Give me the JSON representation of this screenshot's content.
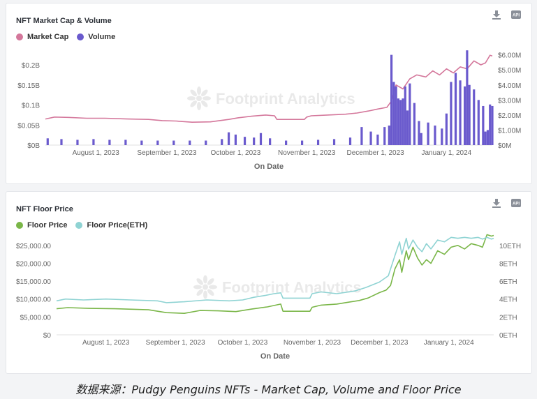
{
  "caption": "数据来源：Pudgy Penguins NFTs - Market Cap, Volume and Floor Price",
  "watermark": "Footprint Analytics",
  "icons": {
    "download": "download-icon",
    "api": "api-icon"
  },
  "chart_data": [
    {
      "type": "bar+line",
      "title": "NFT Market Cap & Volume",
      "xlabel": "On Date",
      "x_ticks": [
        "August 1, 2023",
        "September 1, 2023",
        "October 1, 2023",
        "November 1, 2023",
        "December 1, 2023",
        "January 1, 2024"
      ],
      "x_range": [
        "2023-07-10",
        "2024-01-21"
      ],
      "left_axis": {
        "ticks": [
          "$0B",
          "$0.05B",
          "$0.1B",
          "$0.15B",
          "$0.2B"
        ],
        "range": [
          0,
          0.24
        ]
      },
      "right_axis": {
        "ticks": [
          "$0M",
          "$1.00M",
          "$2.00M",
          "$3.00M",
          "$4.00M",
          "$5.00M",
          "$6.00M"
        ],
        "range": [
          0,
          6.4
        ]
      },
      "series": [
        {
          "name": "Market Cap",
          "color": "#d4779b",
          "kind": "line",
          "axis": "left",
          "points": [
            [
              "2023-07-10",
              0.065
            ],
            [
              "2023-07-14",
              0.07
            ],
            [
              "2023-07-20",
              0.069
            ],
            [
              "2023-07-28",
              0.067
            ],
            [
              "2023-08-05",
              0.067
            ],
            [
              "2023-08-15",
              0.065
            ],
            [
              "2023-08-24",
              0.064
            ],
            [
              "2023-08-30",
              0.061
            ],
            [
              "2023-09-05",
              0.06
            ],
            [
              "2023-09-12",
              0.057
            ],
            [
              "2023-09-20",
              0.058
            ],
            [
              "2023-09-28",
              0.064
            ],
            [
              "2023-10-02",
              0.068
            ],
            [
              "2023-10-08",
              0.072
            ],
            [
              "2023-10-14",
              0.075
            ],
            [
              "2023-10-18",
              0.073
            ],
            [
              "2023-10-19",
              0.064
            ],
            [
              "2023-10-25",
              0.064
            ],
            [
              "2023-10-31",
              0.064
            ],
            [
              "2023-11-01",
              0.07
            ],
            [
              "2023-11-03",
              0.073
            ],
            [
              "2023-11-10",
              0.075
            ],
            [
              "2023-11-18",
              0.077
            ],
            [
              "2023-11-23",
              0.08
            ],
            [
              "2023-11-28",
              0.085
            ],
            [
              "2023-12-02",
              0.09
            ],
            [
              "2023-12-06",
              0.094
            ],
            [
              "2023-12-08",
              0.11
            ],
            [
              "2023-12-10",
              0.15
            ],
            [
              "2023-12-13",
              0.14
            ],
            [
              "2023-12-16",
              0.165
            ],
            [
              "2023-12-19",
              0.175
            ],
            [
              "2023-12-23",
              0.17
            ],
            [
              "2023-12-26",
              0.185
            ],
            [
              "2023-12-29",
              0.175
            ],
            [
              "2024-01-01",
              0.19
            ],
            [
              "2024-01-04",
              0.18
            ],
            [
              "2024-01-07",
              0.195
            ],
            [
              "2024-01-10",
              0.19
            ],
            [
              "2024-01-13",
              0.21
            ],
            [
              "2024-01-16",
              0.2
            ],
            [
              "2024-01-18",
              0.205
            ],
            [
              "2024-01-20",
              0.224
            ],
            [
              "2024-01-21",
              0.222
            ]
          ]
        },
        {
          "name": "Volume",
          "color": "#6a5acd",
          "kind": "bar",
          "axis": "right",
          "points": [
            [
              "2023-07-11",
              0.45
            ],
            [
              "2023-07-17",
              0.4
            ],
            [
              "2023-07-24",
              0.35
            ],
            [
              "2023-07-31",
              0.4
            ],
            [
              "2023-08-07",
              0.35
            ],
            [
              "2023-08-14",
              0.35
            ],
            [
              "2023-08-21",
              0.3
            ],
            [
              "2023-08-28",
              0.3
            ],
            [
              "2023-09-04",
              0.3
            ],
            [
              "2023-09-11",
              0.3
            ],
            [
              "2023-09-18",
              0.3
            ],
            [
              "2023-09-25",
              0.4
            ],
            [
              "2023-09-28",
              0.85
            ],
            [
              "2023-10-01",
              0.7
            ],
            [
              "2023-10-05",
              0.55
            ],
            [
              "2023-10-09",
              0.5
            ],
            [
              "2023-10-12",
              0.8
            ],
            [
              "2023-10-16",
              0.45
            ],
            [
              "2023-10-23",
              0.3
            ],
            [
              "2023-10-30",
              0.3
            ],
            [
              "2023-11-06",
              0.35
            ],
            [
              "2023-11-13",
              0.4
            ],
            [
              "2023-11-20",
              0.5
            ],
            [
              "2023-11-25",
              1.2
            ],
            [
              "2023-11-29",
              0.9
            ],
            [
              "2023-12-02",
              0.7
            ],
            [
              "2023-12-05",
              1.2
            ],
            [
              "2023-12-07",
              1.3
            ],
            [
              "2023-12-08",
              6.0
            ],
            [
              "2023-12-09",
              4.2
            ],
            [
              "2023-12-10",
              3.9
            ],
            [
              "2023-12-11",
              3.1
            ],
            [
              "2023-12-12",
              3.0
            ],
            [
              "2023-12-13",
              3.1
            ],
            [
              "2023-12-14",
              3.9
            ],
            [
              "2023-12-15",
              2.3
            ],
            [
              "2023-12-16",
              4.1
            ],
            [
              "2023-12-18",
              2.8
            ],
            [
              "2023-12-20",
              1.6
            ],
            [
              "2023-12-21",
              0.8
            ],
            [
              "2023-12-24",
              1.5
            ],
            [
              "2023-12-27",
              1.3
            ],
            [
              "2023-12-30",
              1.1
            ],
            [
              "2024-01-01",
              2.1
            ],
            [
              "2024-01-03",
              4.2
            ],
            [
              "2024-01-05",
              4.8
            ],
            [
              "2024-01-07",
              4.3
            ],
            [
              "2024-01-09",
              3.9
            ],
            [
              "2024-01-10",
              6.3
            ],
            [
              "2024-01-11",
              4.0
            ],
            [
              "2024-01-13",
              3.7
            ],
            [
              "2024-01-15",
              3.0
            ],
            [
              "2024-01-17",
              2.6
            ],
            [
              "2024-01-18",
              0.9
            ],
            [
              "2024-01-19",
              1.0
            ],
            [
              "2024-01-20",
              2.7
            ],
            [
              "2024-01-21",
              2.6
            ]
          ]
        }
      ]
    },
    {
      "type": "line",
      "title": "NFT Floor Price",
      "xlabel": "On Date",
      "x_ticks": [
        "August 1, 2023",
        "September 1, 2023",
        "October 1, 2023",
        "November 1, 2023",
        "December 1, 2023",
        "January 1, 2024"
      ],
      "x_range": [
        "2023-07-10",
        "2024-01-21"
      ],
      "left_axis": {
        "ticks": [
          "$0",
          "$5,000.00",
          "$10,000.00",
          "$15,000.00",
          "$20,000.00",
          "$25,000.00"
        ],
        "range": [
          0,
          27500
        ]
      },
      "right_axis": {
        "ticks": [
          "0ETH",
          "2ETH",
          "4ETH",
          "6ETH",
          "8ETH",
          "10ETH"
        ],
        "range": [
          0,
          11
        ]
      },
      "series": [
        {
          "name": "Floor Price",
          "color": "#7ab648",
          "kind": "line",
          "axis": "left",
          "points": [
            [
              "2023-07-10",
              7300
            ],
            [
              "2023-07-15",
              7600
            ],
            [
              "2023-07-25",
              7400
            ],
            [
              "2023-08-05",
              7300
            ],
            [
              "2023-08-20",
              7000
            ],
            [
              "2023-08-28",
              6200
            ],
            [
              "2023-09-05",
              6000
            ],
            [
              "2023-09-12",
              6800
            ],
            [
              "2023-09-20",
              6700
            ],
            [
              "2023-09-28",
              6500
            ],
            [
              "2023-10-05",
              7200
            ],
            [
              "2023-10-12",
              7800
            ],
            [
              "2023-10-18",
              8600
            ],
            [
              "2023-10-19",
              6600
            ],
            [
              "2023-10-25",
              6600
            ],
            [
              "2023-10-31",
              6600
            ],
            [
              "2023-11-01",
              7700
            ],
            [
              "2023-11-05",
              8300
            ],
            [
              "2023-11-12",
              8600
            ],
            [
              "2023-11-18",
              9200
            ],
            [
              "2023-11-22",
              9600
            ],
            [
              "2023-11-26",
              10300
            ],
            [
              "2023-12-01",
              11800
            ],
            [
              "2023-12-04",
              12500
            ],
            [
              "2023-12-06",
              13800
            ],
            [
              "2023-12-08",
              18500
            ],
            [
              "2023-12-10",
              21000
            ],
            [
              "2023-12-11",
              17500
            ],
            [
              "2023-12-13",
              23500
            ],
            [
              "2023-12-14",
              21000
            ],
            [
              "2023-12-16",
              24500
            ],
            [
              "2023-12-18",
              21500
            ],
            [
              "2023-12-20",
              19500
            ],
            [
              "2023-12-22",
              21000
            ],
            [
              "2023-12-24",
              20000
            ],
            [
              "2023-12-27",
              23500
            ],
            [
              "2023-12-30",
              22500
            ],
            [
              "2024-01-02",
              24500
            ],
            [
              "2024-01-05",
              25000
            ],
            [
              "2024-01-08",
              24000
            ],
            [
              "2024-01-11",
              25500
            ],
            [
              "2024-01-14",
              25000
            ],
            [
              "2024-01-16",
              24500
            ],
            [
              "2024-01-18",
              28000
            ],
            [
              "2024-01-20",
              27600
            ],
            [
              "2024-01-21",
              27800
            ]
          ]
        },
        {
          "name": "Floor Price(ETH)",
          "color": "#8fd3d3",
          "kind": "line",
          "axis": "right",
          "points": [
            [
              "2023-07-10",
              3.8
            ],
            [
              "2023-07-14",
              4.0
            ],
            [
              "2023-07-22",
              3.9
            ],
            [
              "2023-08-01",
              4.0
            ],
            [
              "2023-08-12",
              3.9
            ],
            [
              "2023-08-24",
              3.8
            ],
            [
              "2023-08-28",
              3.6
            ],
            [
              "2023-09-05",
              3.7
            ],
            [
              "2023-09-15",
              3.9
            ],
            [
              "2023-09-25",
              3.8
            ],
            [
              "2023-10-01",
              3.9
            ],
            [
              "2023-10-06",
              4.2
            ],
            [
              "2023-10-11",
              4.4
            ],
            [
              "2023-10-15",
              4.6
            ],
            [
              "2023-10-18",
              4.7
            ],
            [
              "2023-10-19",
              4.1
            ],
            [
              "2023-10-25",
              4.1
            ],
            [
              "2023-10-31",
              4.1
            ],
            [
              "2023-11-01",
              4.6
            ],
            [
              "2023-11-05",
              4.8
            ],
            [
              "2023-11-12",
              4.6
            ],
            [
              "2023-11-20",
              4.9
            ],
            [
              "2023-11-25",
              5.3
            ],
            [
              "2023-12-01",
              5.9
            ],
            [
              "2023-12-05",
              6.6
            ],
            [
              "2023-12-08",
              8.9
            ],
            [
              "2023-12-10",
              10.4
            ],
            [
              "2023-12-11",
              9.0
            ],
            [
              "2023-12-13",
              10.8
            ],
            [
              "2023-12-14",
              9.6
            ],
            [
              "2023-12-16",
              10.6
            ],
            [
              "2023-12-18",
              9.8
            ],
            [
              "2023-12-20",
              9.3
            ],
            [
              "2023-12-22",
              10.2
            ],
            [
              "2023-12-24",
              9.6
            ],
            [
              "2023-12-27",
              10.6
            ],
            [
              "2023-12-30",
              10.4
            ],
            [
              "2024-01-02",
              10.9
            ],
            [
              "2024-01-05",
              10.8
            ],
            [
              "2024-01-08",
              10.9
            ],
            [
              "2024-01-11",
              10.8
            ],
            [
              "2024-01-14",
              10.9
            ],
            [
              "2024-01-16",
              10.7
            ],
            [
              "2024-01-18",
              10.9
            ],
            [
              "2024-01-20",
              10.7
            ],
            [
              "2024-01-21",
              10.8
            ]
          ]
        }
      ]
    }
  ]
}
